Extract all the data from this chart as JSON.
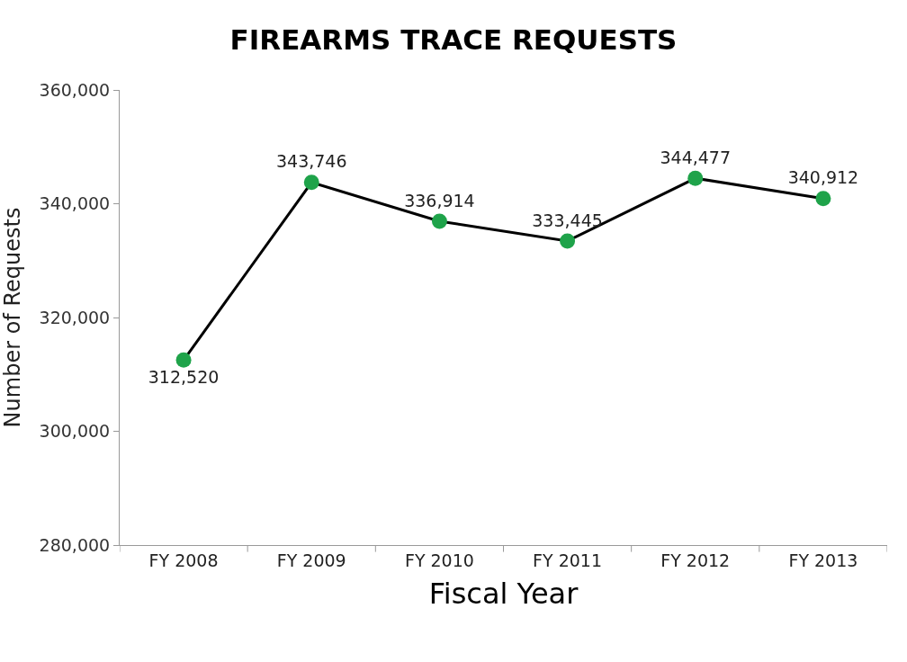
{
  "chart_data": {
    "type": "line",
    "title": "FIREARMS TRACE REQUESTS",
    "xlabel": "Fiscal Year",
    "ylabel": "Number of Requests",
    "categories": [
      "FY 2008",
      "FY 2009",
      "FY 2010",
      "FY 2011",
      "FY 2012",
      "FY 2013"
    ],
    "series": [
      {
        "color": "#1fa34a",
        "values": [
          312520,
          343746,
          336914,
          333445,
          344477,
          340912
        ],
        "value_labels": [
          "312,520",
          "343,746",
          "336,914",
          "333,445",
          "344,477",
          "340,912"
        ]
      }
    ],
    "ylim": [
      280000,
      360000
    ],
    "yticks": [
      {
        "value": 280000,
        "label": "280,000"
      },
      {
        "value": 300000,
        "label": "300,000"
      },
      {
        "value": 320000,
        "label": "320,000"
      },
      {
        "value": 340000,
        "label": "340,000"
      },
      {
        "value": 360000,
        "label": "360,000"
      }
    ],
    "legend": false,
    "marker": "circle",
    "line_style": "solid"
  }
}
